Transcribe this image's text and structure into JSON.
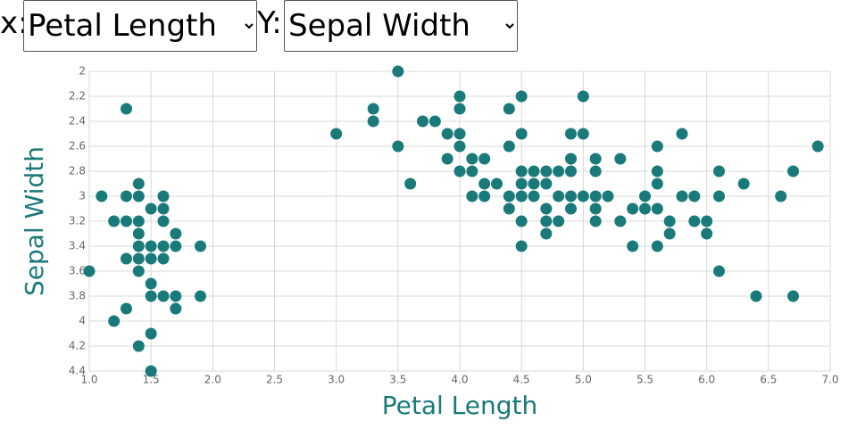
{
  "controls": {
    "x_label": "x:",
    "x_option": "Petal Length",
    "y_label": "Y:",
    "y_option": "Sepal Width"
  },
  "chart_data": {
    "type": "scatter",
    "color": "#1a7a7a",
    "grid": true,
    "x_axis_label": "Petal Length",
    "y_axis_label": "Sepal Width",
    "xlim": [
      1.0,
      7.0
    ],
    "xticks": [
      {
        "value": 1.0,
        "label": "1.0"
      },
      1.5,
      {
        "value": 2.0,
        "label": "2.0"
      },
      2.5,
      {
        "value": 3.0,
        "label": "3.0"
      },
      3.5,
      {
        "value": 4.0,
        "label": "4.0"
      },
      4.5,
      {
        "value": 5.0,
        "label": "5.0"
      },
      5.5,
      {
        "value": 6.0,
        "label": "6.0"
      },
      6.5,
      {
        "value": 7.0,
        "label": "7.0"
      }
    ],
    "ylim": [
      2,
      4.4
    ],
    "y_inverted": true,
    "yticks": [
      2,
      2.2,
      2.4,
      2.6,
      2.8,
      3,
      3.2,
      3.4,
      3.6,
      3.8,
      4,
      4.2,
      4.4
    ],
    "x": [
      1.0,
      1.1,
      1.2,
      1.2,
      1.3,
      1.3,
      1.3,
      1.3,
      1.3,
      1.4,
      1.4,
      1.4,
      1.4,
      1.4,
      1.4,
      1.4,
      1.4,
      1.5,
      1.5,
      1.5,
      1.5,
      1.5,
      1.5,
      1.5,
      1.6,
      1.6,
      1.6,
      1.6,
      1.6,
      1.6,
      1.7,
      1.7,
      1.7,
      1.7,
      1.9,
      1.9,
      3.0,
      3.3,
      3.3,
      3.5,
      3.5,
      3.6,
      3.7,
      3.8,
      3.9,
      3.9,
      4.0,
      4.0,
      4.0,
      4.0,
      4.0,
      4.1,
      4.1,
      4.1,
      4.2,
      4.2,
      4.2,
      4.3,
      4.4,
      4.4,
      4.4,
      4.4,
      4.5,
      4.5,
      4.5,
      4.5,
      4.5,
      4.5,
      4.5,
      4.6,
      4.6,
      4.6,
      4.7,
      4.7,
      4.7,
      4.7,
      4.7,
      4.8,
      4.8,
      4.8,
      4.9,
      4.9,
      4.9,
      4.9,
      4.9,
      5.0,
      5.0,
      5.0,
      5.1,
      5.1,
      5.1,
      5.1,
      5.1,
      5.2,
      5.3,
      5.3,
      5.4,
      5.4,
      5.5,
      5.5,
      5.6,
      5.6,
      5.6,
      5.6,
      5.6,
      5.7,
      5.7,
      5.8,
      5.8,
      5.9,
      5.9,
      6.0,
      6.0,
      6.1,
      6.1,
      6.1,
      6.3,
      6.4,
      6.6,
      6.7,
      6.7,
      6.9
    ],
    "values": [
      3.6,
      3.0,
      3.2,
      4.0,
      2.3,
      3.0,
      3.2,
      3.5,
      3.9,
      2.9,
      3.0,
      3.2,
      3.3,
      3.4,
      3.5,
      3.6,
      4.2,
      3.1,
      3.4,
      3.5,
      3.7,
      3.8,
      4.1,
      4.4,
      3.0,
      3.1,
      3.2,
      3.4,
      3.5,
      3.8,
      3.3,
      3.4,
      3.8,
      3.9,
      3.4,
      3.8,
      2.5,
      2.3,
      2.4,
      2.0,
      2.6,
      2.9,
      2.4,
      2.4,
      2.5,
      2.7,
      2.2,
      2.3,
      2.5,
      2.6,
      2.8,
      2.7,
      2.8,
      3.0,
      2.7,
      2.9,
      3.0,
      2.9,
      2.3,
      2.6,
      3.0,
      3.1,
      2.2,
      2.5,
      2.8,
      2.9,
      3.0,
      3.2,
      3.4,
      2.8,
      2.9,
      3.0,
      2.8,
      2.9,
      3.1,
      3.2,
      3.3,
      2.8,
      3.0,
      3.2,
      2.5,
      2.7,
      2.8,
      3.0,
      3.1,
      2.2,
      2.5,
      3.0,
      2.7,
      2.8,
      3.0,
      3.1,
      3.2,
      3.0,
      2.7,
      3.2,
      3.1,
      3.4,
      3.0,
      3.1,
      2.6,
      2.8,
      2.9,
      3.1,
      3.4,
      3.2,
      3.3,
      2.5,
      3.0,
      3.0,
      3.2,
      3.2,
      3.3,
      2.8,
      3.0,
      3.6,
      2.9,
      3.8,
      3.0,
      2.8,
      3.8,
      2.6
    ]
  }
}
